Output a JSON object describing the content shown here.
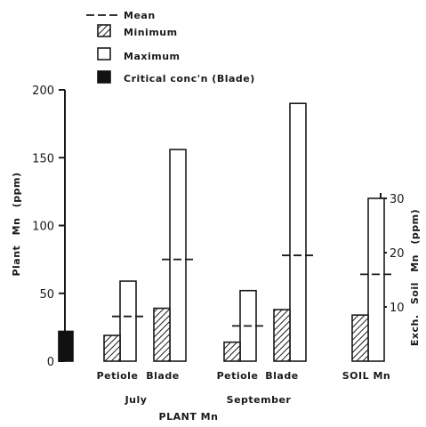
{
  "chart_data": {
    "type": "bar",
    "left_axis": {
      "label": "Plant Mn (ppm)",
      "label_parts": [
        "Plant",
        "Mn",
        "(ppm)"
      ],
      "ylim": [
        0,
        200
      ],
      "ticks": [
        0,
        50,
        100,
        150,
        200
      ]
    },
    "right_axis": {
      "label": "Exch. Soil Mn (ppm)",
      "label_parts": [
        "Exch.",
        "Soil",
        "Mn",
        "(ppm)"
      ],
      "ylim": [
        0,
        30
      ],
      "ticks": [
        10,
        20,
        30
      ]
    },
    "xlabel": "PLANT Mn",
    "groups": [
      {
        "name": "July",
        "categories": [
          "Petiole",
          "Blade"
        ]
      },
      {
        "name": "September",
        "categories": [
          "Petiole",
          "Blade"
        ]
      }
    ],
    "soil_label": "SOIL Mn",
    "series": [
      {
        "name": "Mean",
        "values": {
          "July Petiole": 33,
          "July Blade": 75,
          "September Petiole": 26,
          "September Blade": 78,
          "SOIL Mn": 16
        }
      },
      {
        "name": "Minimum",
        "values": {
          "July Petiole": 19,
          "July Blade": 39,
          "September Petiole": 14,
          "September Blade": 38,
          "SOIL Mn": 8.5
        }
      },
      {
        "name": "Maximum",
        "values": {
          "July Petiole": 59,
          "July Blade": 156,
          "September Petiole": 52,
          "September Blade": 190,
          "SOIL Mn": 30
        }
      },
      {
        "name": "Critical conc'n (Blade)",
        "values": {
          "Critical": 22
        }
      }
    ],
    "legend_position": "top-left",
    "grid": false
  },
  "colors": {
    "ink": "#1a1a1a",
    "critical": "#111111",
    "maximum_fill": "#ffffff"
  }
}
